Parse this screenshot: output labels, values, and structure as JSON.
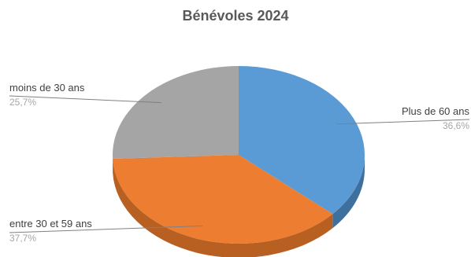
{
  "chart_data": {
    "type": "pie",
    "title": "Bénévoles 2024",
    "categories": [
      "Plus de 60 ans",
      "entre 30 et 59 ans",
      "moins de 30 ans"
    ],
    "values": [
      36.6,
      37.7,
      25.7
    ],
    "value_labels": [
      "36,6%",
      "37,7%",
      "25,7%"
    ],
    "colors": [
      "#5b9bd5",
      "#ed7d31",
      "#a5a5a5"
    ],
    "side_colors": [
      "#3f6f9c",
      "#b85f22",
      "#7f7f7f"
    ],
    "style": "3d",
    "legend": "none"
  }
}
